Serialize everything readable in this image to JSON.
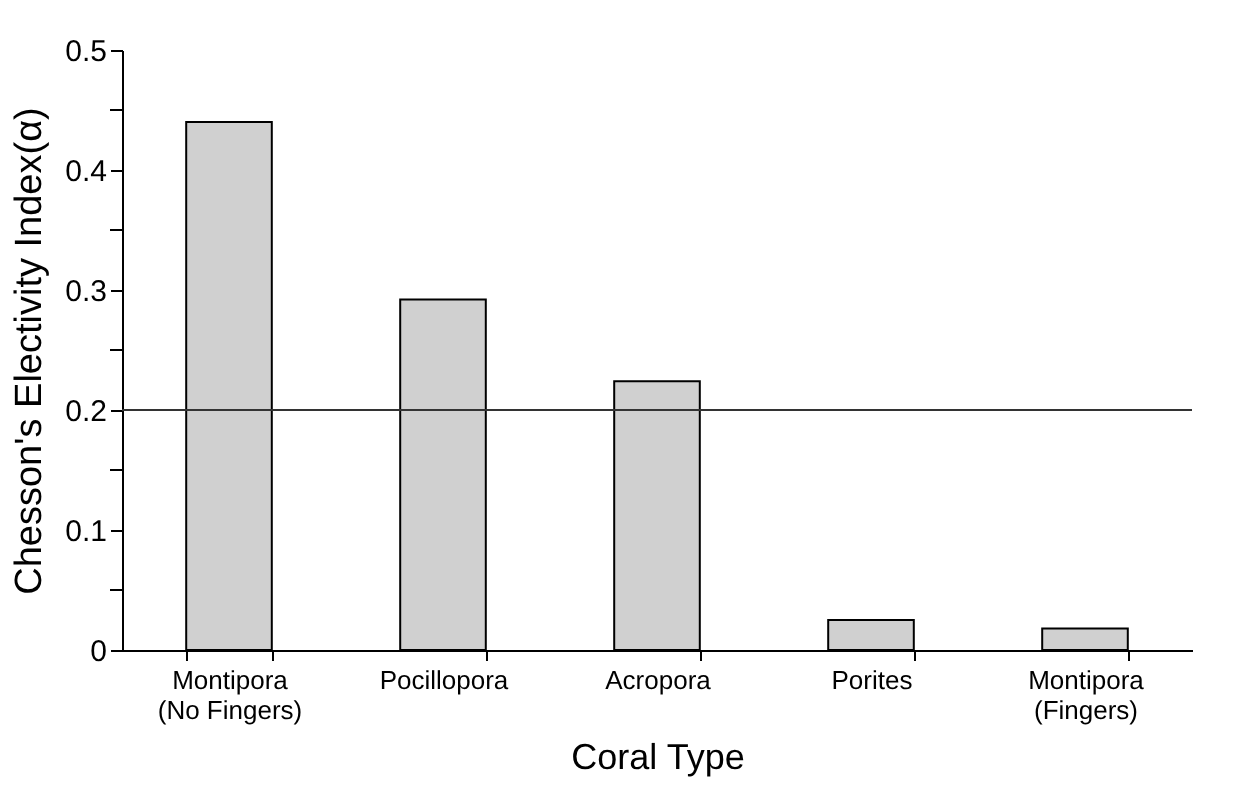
{
  "chart_data": {
    "type": "bar",
    "xlabel": "Coral Type",
    "ylabel": "Chesson's Electivity Index(α)",
    "categories": [
      "Montipora\n(No Fingers)",
      "Pocillopora",
      "Acropora",
      "Porites",
      "Montipora\n(Fingers)"
    ],
    "values": [
      0.44,
      0.292,
      0.224,
      0.025,
      0.018
    ],
    "color": "#d0d0d0",
    "ylim": [
      0,
      0.5
    ],
    "yticks": [
      0,
      {
        "value": 0.05,
        "label": null
      },
      0.1,
      {
        "value": 0.15,
        "label": null
      },
      0.2,
      {
        "value": 0.25,
        "label": null
      },
      0.3,
      {
        "value": 0.35,
        "label": null
      },
      0.4,
      {
        "value": 0.45,
        "label": null
      },
      0.5
    ],
    "ref_lines": [
      {
        "axis": "y",
        "value": 0.2,
        "color": "#333333"
      }
    ],
    "grid": false
  }
}
